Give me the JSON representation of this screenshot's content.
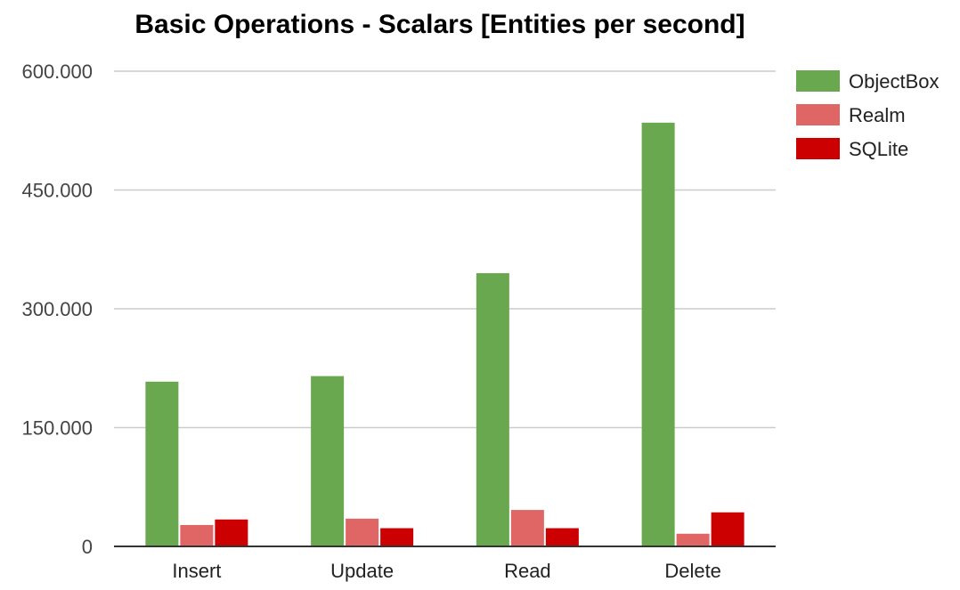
{
  "chart_data": {
    "type": "bar",
    "title": "Basic Operations - Scalars [Entities per second]",
    "xlabel": "",
    "ylabel": "",
    "categories": [
      "Insert",
      "Update",
      "Read",
      "Delete"
    ],
    "series": [
      {
        "name": "ObjectBox",
        "color": "#6aa84f",
        "values": [
          208000,
          215000,
          345000,
          535000
        ]
      },
      {
        "name": "Realm",
        "color": "#e06666",
        "values": [
          27000,
          35000,
          46000,
          16000
        ]
      },
      {
        "name": "SQLite",
        "color": "#cc0000",
        "values": [
          34000,
          23000,
          23000,
          43000
        ]
      }
    ],
    "ylim": [
      0,
      600000
    ],
    "yticks": [
      0,
      150000,
      300000,
      450000,
      600000
    ],
    "ytick_labels": [
      "0",
      "150.000",
      "300.000",
      "450.000",
      "600.000"
    ],
    "grid": true,
    "legend_position": "right",
    "colors": {
      "gridline": "#cccccc",
      "baseline": "#333333",
      "realm_fill": "#e06666"
    }
  }
}
